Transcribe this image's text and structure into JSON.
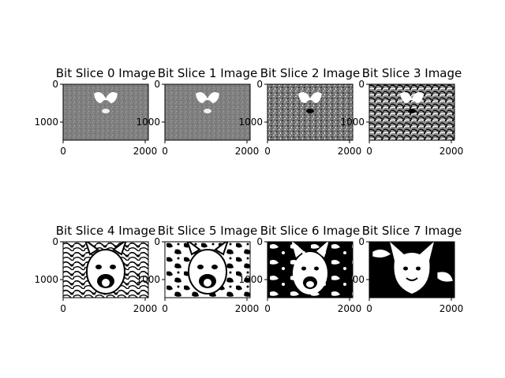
{
  "figure": {
    "panels": [
      {
        "title": "Bit Slice 0 Image",
        "xticks": [
          "0",
          "2000"
        ],
        "yticks": [
          "0",
          "1000"
        ],
        "style": "gray-noise"
      },
      {
        "title": "Bit Slice 1 Image",
        "xticks": [
          "0",
          "2000"
        ],
        "yticks": [
          "0",
          "1000"
        ],
        "style": "gray-noise"
      },
      {
        "title": "Bit Slice 2 Image",
        "xticks": [
          "0",
          "2000"
        ],
        "yticks": [
          "0",
          "1000"
        ],
        "style": "gray-speckle"
      },
      {
        "title": "Bit Slice 3 Image",
        "xticks": [
          "0",
          "2000"
        ],
        "yticks": [
          "0",
          "1000"
        ],
        "style": "busy-pattern"
      },
      {
        "title": "Bit Slice 4 Image",
        "xticks": [
          "0",
          "2000"
        ],
        "yticks": [
          "0",
          "1000"
        ],
        "style": "bw-contour"
      },
      {
        "title": "Bit Slice 5 Image",
        "xticks": [
          "0",
          "2000"
        ],
        "yticks": [
          "0",
          "1000"
        ],
        "style": "bw-patchy"
      },
      {
        "title": "Bit Slice 6 Image",
        "xticks": [
          "0",
          "2000"
        ],
        "yticks": [
          "0",
          "1000"
        ],
        "style": "bw-face"
      },
      {
        "title": "Bit Slice 7 Image",
        "xticks": [
          "0",
          "2000"
        ],
        "yticks": [
          "0",
          "1000"
        ],
        "style": "bw-silhouette"
      }
    ],
    "colors": {
      "background": "#ffffff",
      "gray": "#808080",
      "black": "#000000",
      "white": "#ffffff"
    }
  }
}
